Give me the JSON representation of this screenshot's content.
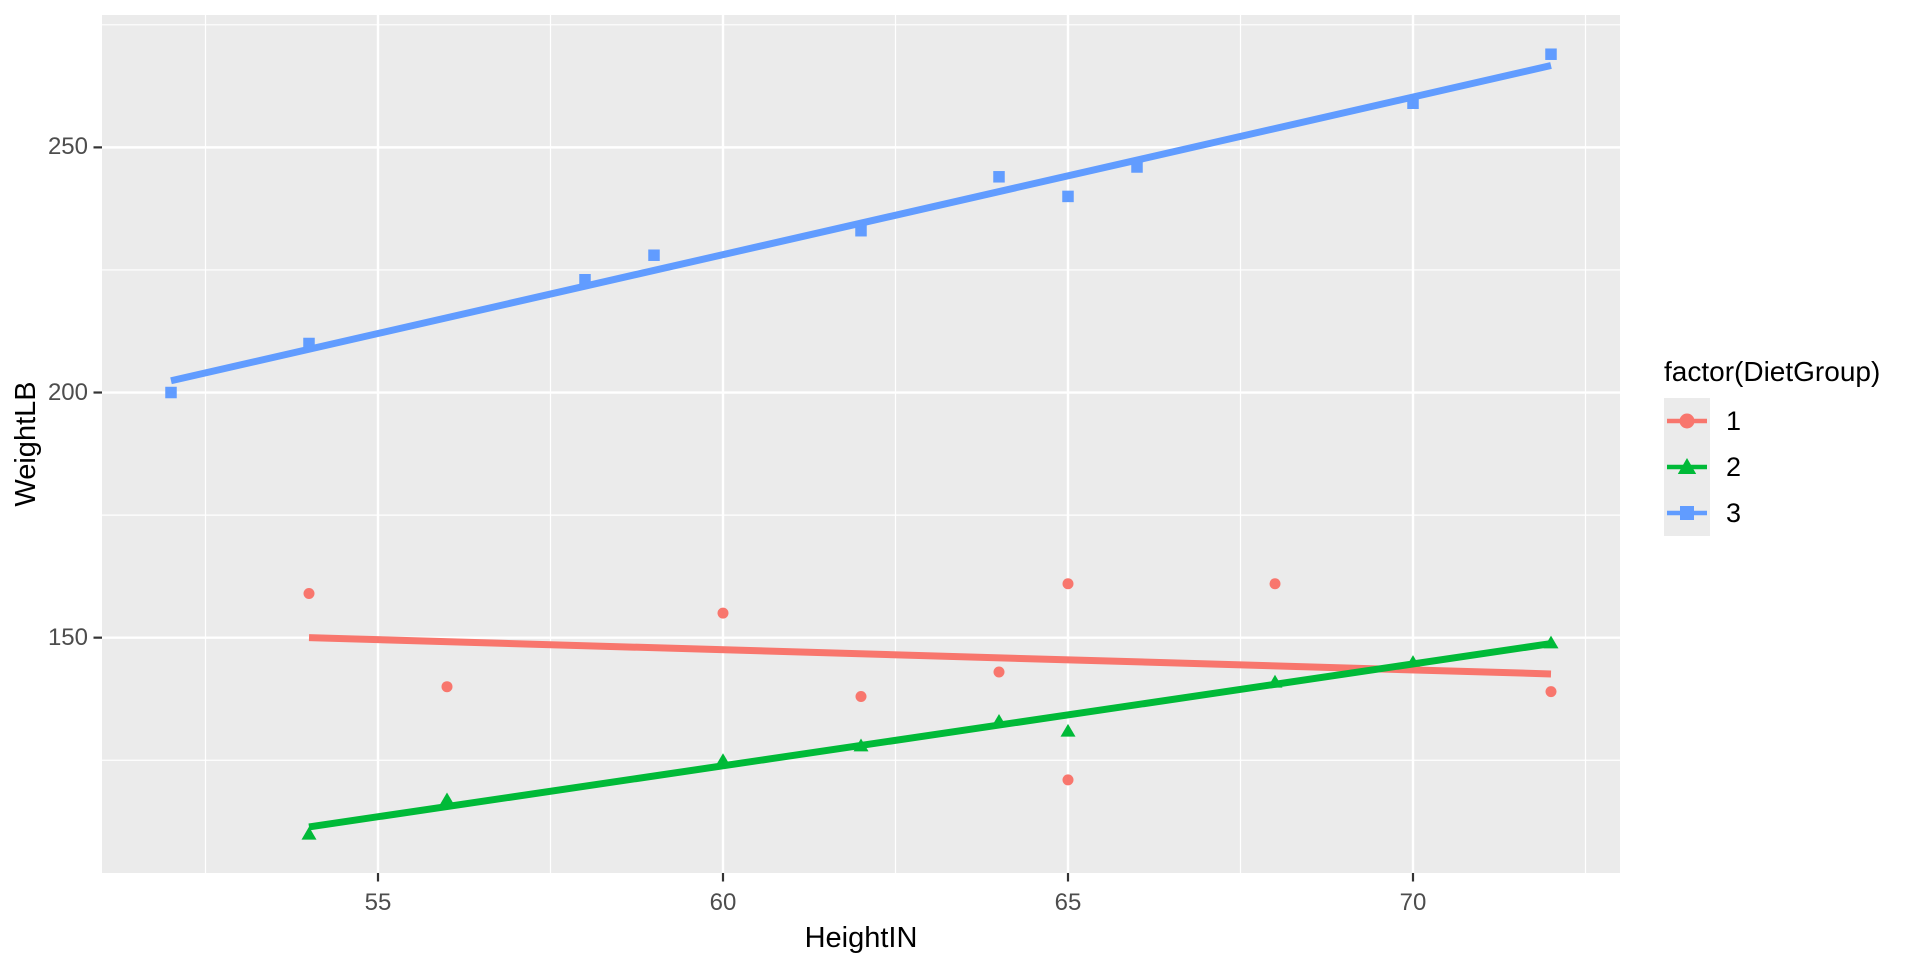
{
  "figure": {
    "background": "#FFFFFF",
    "panel_background": "#EBEBEB",
    "grid_color": "#FFFFFF",
    "tick_mark_color": "#333333",
    "tick_label_color": "#4D4D4D",
    "axis_title_color": "#000000",
    "legend_key_background": "#EBEBEB"
  },
  "chart_data": {
    "type": "scatter",
    "title": "",
    "xlabel": "HeightIN",
    "ylabel": "WeightLB",
    "xlim": [
      51,
      73
    ],
    "ylim": [
      102,
      277
    ],
    "grid": true,
    "legend_position": "right",
    "x_major_ticks": [
      55,
      60,
      65,
      70
    ],
    "x_tick_labels": [
      "55",
      "60",
      "65",
      "70"
    ],
    "x_minor_gridlines": [
      52.5,
      57.5,
      62.5,
      67.5,
      72.5
    ],
    "y_major_ticks": [
      150,
      200,
      250
    ],
    "y_tick_labels": [
      "150",
      "200",
      "250"
    ],
    "y_minor_gridlines": [
      125,
      175,
      225,
      275
    ],
    "series": [
      {
        "name": "1",
        "color": "#F8766D",
        "marker": "circle",
        "points": [
          [
            54,
            159
          ],
          [
            56,
            140
          ],
          [
            60,
            155
          ],
          [
            62,
            138
          ],
          [
            64,
            143
          ],
          [
            65,
            121
          ],
          [
            65,
            161
          ],
          [
            68,
            161
          ],
          [
            72,
            139
          ]
        ],
        "regression_line": {
          "x1": 54,
          "y1": 150.0,
          "x2": 72,
          "y2": 142.6
        }
      },
      {
        "name": "2",
        "color": "#00BA38",
        "marker": "triangle",
        "points": [
          [
            54,
            110
          ],
          [
            56,
            117
          ],
          [
            60,
            125
          ],
          [
            62,
            128
          ],
          [
            64,
            133
          ],
          [
            65,
            131
          ],
          [
            68,
            141
          ],
          [
            70,
            145
          ],
          [
            72,
            149
          ]
        ],
        "regression_line": {
          "x1": 54,
          "y1": 111.4,
          "x2": 72,
          "y2": 148.8
        }
      },
      {
        "name": "3",
        "color": "#619CFF",
        "marker": "square",
        "points": [
          [
            52,
            200
          ],
          [
            54,
            210
          ],
          [
            58,
            223
          ],
          [
            59,
            228
          ],
          [
            62,
            233
          ],
          [
            64,
            244
          ],
          [
            65,
            240
          ],
          [
            66,
            246
          ],
          [
            70,
            259
          ],
          [
            72,
            269
          ]
        ],
        "regression_line": {
          "x1": 52,
          "y1": 202.4,
          "x2": 72,
          "y2": 266.7
        }
      }
    ]
  },
  "legend": {
    "title": "factor(DietGroup)"
  }
}
